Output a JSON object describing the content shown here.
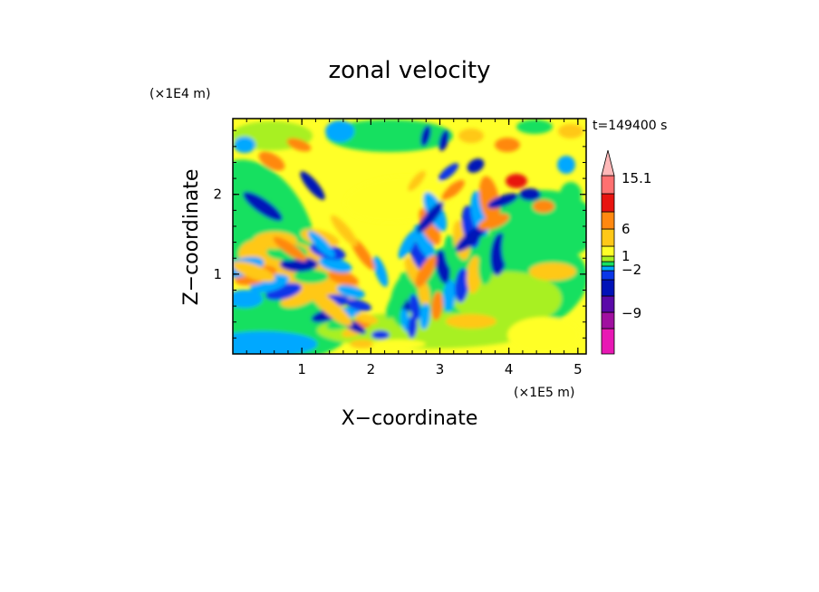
{
  "chart_data": {
    "type": "heatmap",
    "title": "zonal velocity",
    "xlabel": "X−coordinate",
    "ylabel": "Z−coordinate",
    "x_scale_label": "(×1E5 m)",
    "y_scale_label": "(×1E4 m)",
    "time_label": "t=149400 s",
    "xlim": [
      0,
      5.12
    ],
    "ylim": [
      0,
      2.95
    ],
    "x_ticks": [
      1,
      2,
      3,
      4,
      5
    ],
    "y_ticks": [
      1,
      2
    ],
    "colorbar": {
      "levels": [
        -15,
        -12,
        -9,
        -6,
        -2,
        -1,
        1,
        2,
        3,
        6,
        9,
        12,
        15.1
      ],
      "colors": [
        "#e818b4",
        "#a010a0",
        "#5a0aa8",
        "#0012b8",
        "#0a36e8",
        "#00a8ff",
        "#18e060",
        "#a8f020",
        "#ffff28",
        "#ffc818",
        "#ff8810",
        "#e81410",
        "#ff7070",
        "#ffb8b8"
      ],
      "tick_labels": [
        15.1,
        6,
        1,
        -2,
        -9
      ],
      "extend_max": true
    },
    "field_description_features": []
  }
}
